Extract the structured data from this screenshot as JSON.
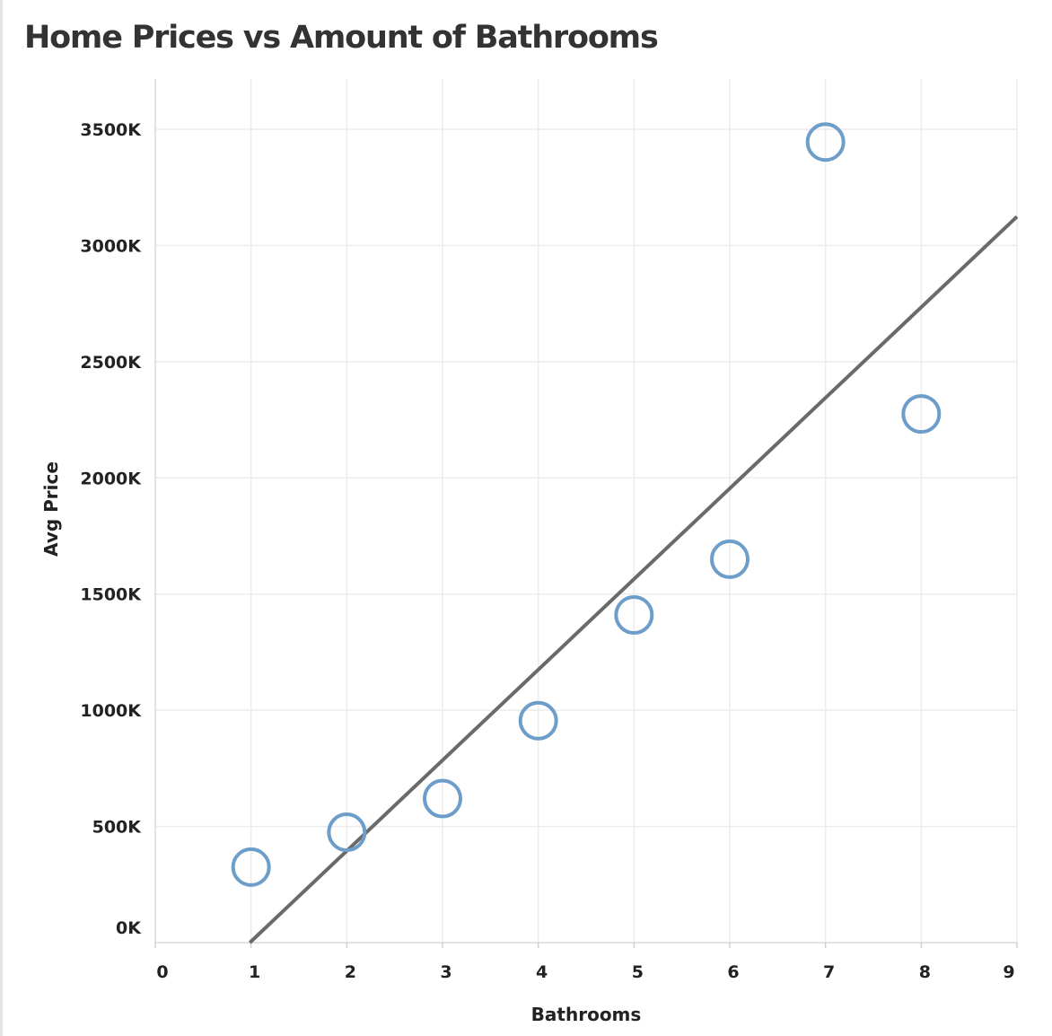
{
  "title": "Home Prices vs Amount of Bathrooms",
  "colors": {
    "marker": "#6d9dc9",
    "trendline": "#6a6a6a",
    "grid": "#ececec",
    "text": "#222222"
  },
  "chart_data": {
    "type": "scatter",
    "title": "Home Prices vs Amount of Bathrooms",
    "xlabel": "Bathrooms",
    "ylabel": "Avg Price",
    "xlim": [
      0,
      9
    ],
    "ylim": [
      0,
      3500000
    ],
    "x_ticks": [
      0,
      1,
      2,
      3,
      4,
      5,
      6,
      7,
      8,
      9
    ],
    "x_tick_labels": [
      "0",
      "1",
      "2",
      "3",
      "4",
      "5",
      "6",
      "7",
      "8",
      "9"
    ],
    "y_ticks": [
      0,
      500000,
      1000000,
      1500000,
      2000000,
      2500000,
      3000000,
      3500000
    ],
    "y_tick_labels": [
      "0K",
      "500K",
      "1000K",
      "1500K",
      "2000K",
      "2500K",
      "3000K",
      "3500K"
    ],
    "grid": true,
    "marker": "hollow-circle",
    "series": [
      {
        "x": [
          1,
          2,
          3,
          4,
          5,
          6,
          7,
          8
        ],
        "y": [
          325000,
          475000,
          620000,
          955000,
          1410000,
          1650000,
          3445000,
          2275000
        ]
      }
    ],
    "trendline": {
      "type": "linear",
      "slope": 389900,
      "intercept": -385000
    }
  }
}
